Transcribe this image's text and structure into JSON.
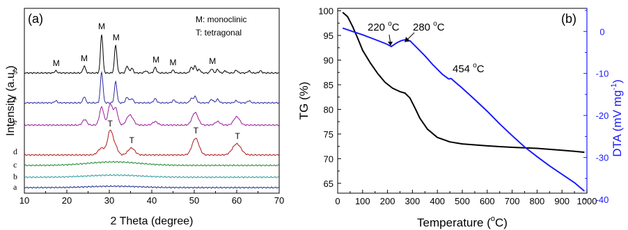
{
  "chart_data": [
    {
      "panel_label": "(a)",
      "type": "line",
      "xlabel": "2 Theta (degree)",
      "ylabel": "Intensity (a.u.)",
      "xlim": [
        10,
        70
      ],
      "xticks": [
        "10",
        "20",
        "30",
        "40",
        "50",
        "60",
        "70"
      ],
      "yticks": "none",
      "legend_lines": [
        "M: monoclinic",
        "T: tetragonal"
      ],
      "series": [
        {
          "name": "a",
          "color": "#1e2a8a",
          "offset": 0,
          "peaks": [
            {
              "x": 31,
              "h": 2,
              "w": 6
            }
          ]
        },
        {
          "name": "b",
          "color": "#2a9a9a",
          "offset": 1,
          "peaks": [
            {
              "x": 31,
              "h": 3,
              "w": 6
            }
          ]
        },
        {
          "name": "c",
          "color": "#1a8a2a",
          "offset": 2,
          "peaks": [
            {
              "x": 31,
              "h": 5,
              "w": 6
            }
          ]
        },
        {
          "name": "d",
          "color": "#b01818",
          "offset": 3,
          "peaks": [
            {
              "x": 28.2,
              "h": 10,
              "w": 0.8
            },
            {
              "x": 30.2,
              "h": 34,
              "w": 0.6
            },
            {
              "x": 31.4,
              "h": 12,
              "w": 0.6
            },
            {
              "x": 35.2,
              "h": 10,
              "w": 0.8
            },
            {
              "x": 50.3,
              "h": 24,
              "w": 0.8
            },
            {
              "x": 60,
              "h": 16,
              "w": 1
            }
          ]
        },
        {
          "name": "e",
          "color": "#9a1a9a",
          "offset": 4,
          "peaks": [
            {
              "x": 24.2,
              "h": 8,
              "w": 0.5
            },
            {
              "x": 28.2,
              "h": 26,
              "w": 0.5
            },
            {
              "x": 30.2,
              "h": 30,
              "w": 0.5
            },
            {
              "x": 31.5,
              "h": 24,
              "w": 0.5
            },
            {
              "x": 34.5,
              "h": 10,
              "w": 0.6
            },
            {
              "x": 35.3,
              "h": 8,
              "w": 0.6
            },
            {
              "x": 40.8,
              "h": 5,
              "w": 0.6
            },
            {
              "x": 50.2,
              "h": 18,
              "w": 0.7
            },
            {
              "x": 55.5,
              "h": 5,
              "w": 0.6
            },
            {
              "x": 60,
              "h": 12,
              "w": 0.7
            }
          ]
        },
        {
          "name": "f",
          "color": "#2a2aa0",
          "offset": 5,
          "peaks": [
            {
              "x": 17.4,
              "h": 3,
              "w": 0.3
            },
            {
              "x": 24.1,
              "h": 9,
              "w": 0.3
            },
            {
              "x": 28.2,
              "h": 44,
              "w": 0.3
            },
            {
              "x": 31.5,
              "h": 30,
              "w": 0.3
            },
            {
              "x": 34.2,
              "h": 8,
              "w": 0.35
            },
            {
              "x": 35.3,
              "h": 6,
              "w": 0.35
            },
            {
              "x": 40.8,
              "h": 6,
              "w": 0.35
            },
            {
              "x": 45.2,
              "h": 4,
              "w": 0.35
            },
            {
              "x": 49.3,
              "h": 6,
              "w": 0.35
            },
            {
              "x": 50.2,
              "h": 9,
              "w": 0.35
            },
            {
              "x": 54.1,
              "h": 5,
              "w": 0.35
            },
            {
              "x": 55.5,
              "h": 5,
              "w": 0.35
            },
            {
              "x": 59.9,
              "h": 3,
              "w": 0.35
            },
            {
              "x": 62.9,
              "h": 3,
              "w": 0.35
            }
          ]
        },
        {
          "name": "g",
          "color": "#000000",
          "offset": 6,
          "peaks": [
            {
              "x": 17.4,
              "h": 3,
              "w": 0.3
            },
            {
              "x": 24.1,
              "h": 10,
              "w": 0.3
            },
            {
              "x": 28.2,
              "h": 56,
              "w": 0.28
            },
            {
              "x": 31.5,
              "h": 40,
              "w": 0.28
            },
            {
              "x": 34.2,
              "h": 10,
              "w": 0.3
            },
            {
              "x": 35.3,
              "h": 7,
              "w": 0.3
            },
            {
              "x": 38.6,
              "h": 3,
              "w": 0.3
            },
            {
              "x": 40.8,
              "h": 8,
              "w": 0.3
            },
            {
              "x": 45.0,
              "h": 4,
              "w": 0.3
            },
            {
              "x": 49.3,
              "h": 8,
              "w": 0.3
            },
            {
              "x": 50.2,
              "h": 10,
              "w": 0.3
            },
            {
              "x": 51.2,
              "h": 5,
              "w": 0.3
            },
            {
              "x": 54.1,
              "h": 6,
              "w": 0.3
            },
            {
              "x": 55.5,
              "h": 5,
              "w": 0.3
            },
            {
              "x": 57.3,
              "h": 3,
              "w": 0.3
            },
            {
              "x": 59.9,
              "h": 4,
              "w": 0.3
            },
            {
              "x": 62.9,
              "h": 3,
              "w": 0.3
            },
            {
              "x": 65.6,
              "h": 3,
              "w": 0.3
            }
          ]
        }
      ],
      "annotations": [
        {
          "text": "M",
          "x": 17.5,
          "series": "g",
          "h": 4
        },
        {
          "text": "M",
          "x": 24.1,
          "series": "g",
          "h": 11
        },
        {
          "text": "M",
          "x": 28.2,
          "series": "g",
          "h": 57
        },
        {
          "text": "M",
          "x": 31.6,
          "series": "g",
          "h": 41
        },
        {
          "text": "M",
          "x": 41.0,
          "series": "g",
          "h": 9
        },
        {
          "text": "M",
          "x": 45.0,
          "series": "g",
          "h": 5
        },
        {
          "text": "M",
          "x": 54.3,
          "series": "g",
          "h": 7
        },
        {
          "text": "T",
          "x": 30.2,
          "series": "d",
          "h": 35
        },
        {
          "text": "T",
          "x": 35.3,
          "series": "d",
          "h": 11
        },
        {
          "text": "T",
          "x": 50.4,
          "series": "d",
          "h": 25
        },
        {
          "text": "T",
          "x": 60.2,
          "series": "d",
          "h": 17
        }
      ]
    },
    {
      "panel_label": "(b)",
      "type": "line",
      "xlabel": "Temperature (°C)",
      "xlabel_main": "Temperature (",
      "xlabel_unit": "C)",
      "xlabel_deg": "o",
      "ylabel": "TG (%)",
      "y2label": "DTA (mV mg⁻¹)",
      "y2label_main": "DTA (mV mg",
      "y2label_sup": "-1",
      "y2label_end": ")",
      "xlim": [
        0,
        1000
      ],
      "ylim": [
        63,
        100.5
      ],
      "y2lim": [
        -38.5,
        5.5
      ],
      "xticks": [
        "0",
        "100",
        "200",
        "300",
        "400",
        "500",
        "600",
        "700",
        "800",
        "900",
        "1000"
      ],
      "yticks": [
        "65",
        "70",
        "75",
        "80",
        "85",
        "90",
        "95",
        "100"
      ],
      "y2ticks": [
        "0",
        "-10",
        "-20",
        "-30",
        "-40"
      ],
      "series": [
        {
          "name": "TG",
          "axis": "left",
          "color": "#000000",
          "x": [
            20,
            40,
            60,
            80,
            100,
            130,
            160,
            190,
            220,
            250,
            270,
            290,
            310,
            330,
            360,
            400,
            450,
            500,
            550,
            600,
            650,
            700,
            750,
            800,
            850,
            900,
            950,
            990
          ],
          "y": [
            99.7,
            98.8,
            96.8,
            94.5,
            92.0,
            89.5,
            87.3,
            85.5,
            84.3,
            83.6,
            83.3,
            82.3,
            80.3,
            78.2,
            76.0,
            74.3,
            73.4,
            73.0,
            72.8,
            72.6,
            72.45,
            72.3,
            72.2,
            72.1,
            71.9,
            71.7,
            71.5,
            71.3
          ]
        },
        {
          "name": "DTA",
          "axis": "right",
          "color": "#1a1aff",
          "x": [
            20,
            60,
            100,
            140,
            180,
            200,
            215,
            225,
            240,
            255,
            268,
            280,
            290,
            300,
            320,
            350,
            380,
            420,
            445,
            455,
            470,
            500,
            550,
            600,
            650,
            700,
            750,
            800,
            850,
            900,
            950,
            990
          ],
          "y": [
            0.8,
            0.0,
            -0.8,
            -1.7,
            -2.6,
            -3.1,
            -3.6,
            -3.2,
            -2.6,
            -2.2,
            -2.0,
            -2.3,
            -2.2,
            -2.8,
            -4.0,
            -5.8,
            -7.8,
            -10.2,
            -11.3,
            -11.2,
            -12.0,
            -13.5,
            -16.2,
            -19.0,
            -22.0,
            -24.8,
            -27.5,
            -29.8,
            -32.0,
            -34.0,
            -36.0,
            -38.0
          ]
        }
      ],
      "annotations": [
        {
          "text": "220 °C",
          "main": "220 ",
          "deg": "o",
          "unit": "C"
        },
        {
          "text": "280 °C",
          "main": "280 ",
          "deg": "o",
          "unit": "C"
        },
        {
          "text": "454 °C",
          "main": "454 ",
          "deg": "o",
          "unit": "C"
        }
      ]
    }
  ]
}
